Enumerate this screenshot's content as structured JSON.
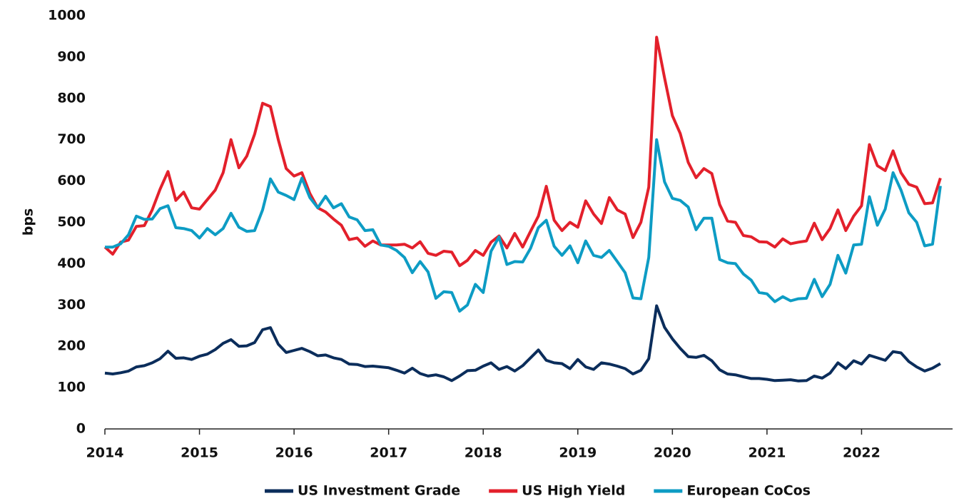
{
  "chart_data": {
    "type": "line",
    "y_label": "bps",
    "x": [
      2014,
      2014.083,
      2014.167,
      2014.25,
      2014.333,
      2014.417,
      2014.5,
      2014.583,
      2014.667,
      2014.75,
      2014.833,
      2014.917,
      2015,
      2015.083,
      2015.167,
      2015.25,
      2015.333,
      2015.417,
      2015.5,
      2015.583,
      2015.667,
      2015.75,
      2015.833,
      2015.917,
      2016,
      2016.083,
      2016.167,
      2016.25,
      2016.333,
      2016.417,
      2016.5,
      2016.583,
      2016.667,
      2016.75,
      2016.833,
      2016.917,
      2017,
      2017.083,
      2017.167,
      2017.25,
      2017.333,
      2017.417,
      2017.5,
      2017.583,
      2017.667,
      2017.75,
      2017.833,
      2017.917,
      2018,
      2018.083,
      2018.167,
      2018.25,
      2018.333,
      2018.417,
      2018.5,
      2018.583,
      2018.667,
      2018.75,
      2018.833,
      2018.917,
      2019,
      2019.083,
      2019.167,
      2019.25,
      2019.333,
      2019.417,
      2019.5,
      2019.583,
      2019.667,
      2019.75,
      2019.833,
      2019.917,
      2020,
      2020.083,
      2020.167,
      2020.25,
      2020.333,
      2020.417,
      2020.5,
      2020.583,
      2020.667,
      2020.75,
      2020.833,
      2020.917,
      2021,
      2021.083,
      2021.167,
      2021.25,
      2021.333,
      2021.417,
      2021.5,
      2021.583,
      2021.667,
      2021.75,
      2021.833,
      2021.917,
      2022,
      2022.083,
      2022.167,
      2022.25,
      2022.333,
      2022.417,
      2022.5,
      2022.583,
      2022.667,
      2022.75,
      2022.833
    ],
    "series": [
      {
        "name": "US Investment Grade",
        "color": "#0b2d5b",
        "values": [
          135,
          133,
          136,
          140,
          150,
          153,
          160,
          170,
          188,
          171,
          172,
          168,
          176,
          181,
          192,
          207,
          216,
          200,
          201,
          209,
          240,
          245,
          205,
          185,
          190,
          195,
          187,
          177,
          179,
          172,
          168,
          157,
          156,
          151,
          152,
          150,
          148,
          142,
          135,
          147,
          134,
          128,
          131,
          126,
          117,
          128,
          141,
          142,
          152,
          160,
          144,
          151,
          140,
          153,
          172,
          191,
          166,
          160,
          158,
          146,
          168,
          150,
          144,
          160,
          157,
          152,
          146,
          133,
          142,
          170,
          298,
          246,
          218,
          195,
          175,
          173,
          178,
          165,
          143,
          133,
          131,
          126,
          122,
          122,
          120,
          117,
          118,
          119,
          116,
          117,
          128,
          123,
          135,
          160,
          146,
          165,
          157,
          178,
          172,
          166,
          187,
          184,
          163,
          150,
          140,
          147,
          158
        ]
      },
      {
        "name": "US High Yield",
        "color": "#e3202b",
        "values": [
          440,
          423,
          452,
          457,
          490,
          492,
          530,
          580,
          623,
          553,
          573,
          535,
          532,
          555,
          578,
          620,
          700,
          632,
          660,
          713,
          788,
          780,
          700,
          630,
          612,
          620,
          570,
          535,
          525,
          508,
          493,
          458,
          462,
          442,
          455,
          445,
          445,
          445,
          447,
          438,
          453,
          425,
          420,
          430,
          428,
          395,
          408,
          432,
          420,
          452,
          467,
          438,
          473,
          440,
          478,
          515,
          587,
          505,
          480,
          500,
          488,
          552,
          520,
          497,
          560,
          530,
          520,
          463,
          500,
          585,
          948,
          850,
          758,
          715,
          645,
          608,
          630,
          618,
          543,
          503,
          500,
          468,
          465,
          453,
          452,
          440,
          460,
          448,
          452,
          455,
          498,
          458,
          485,
          530,
          480,
          515,
          540,
          688,
          637,
          625,
          673,
          620,
          592,
          585,
          545,
          547,
          607
        ]
      },
      {
        "name": "European CoCos",
        "color": "#0d9cc4",
        "values": [
          440,
          440,
          448,
          470,
          515,
          507,
          508,
          533,
          540,
          487,
          485,
          480,
          462,
          485,
          470,
          485,
          522,
          488,
          478,
          480,
          530,
          605,
          573,
          565,
          555,
          607,
          560,
          535,
          563,
          535,
          545,
          513,
          506,
          480,
          482,
          445,
          442,
          432,
          415,
          378,
          405,
          380,
          316,
          332,
          330,
          285,
          300,
          350,
          330,
          430,
          465,
          398,
          405,
          404,
          437,
          487,
          505,
          442,
          420,
          443,
          402,
          455,
          420,
          415,
          432,
          405,
          378,
          317,
          315,
          415,
          700,
          598,
          558,
          553,
          537,
          482,
          510,
          510,
          410,
          402,
          400,
          375,
          360,
          330,
          327,
          308,
          320,
          310,
          315,
          316,
          362,
          320,
          350,
          420,
          377,
          445,
          447,
          562,
          493,
          532,
          620,
          578,
          523,
          500,
          443,
          447,
          588
        ]
      }
    ],
    "xlim": [
      2014,
      2023
    ],
    "xticks": [
      2014,
      2015,
      2016,
      2017,
      2018,
      2019,
      2020,
      2021,
      2022
    ],
    "ylim": [
      0,
      1000
    ],
    "yticks": [
      0,
      100,
      200,
      300,
      400,
      500,
      600,
      700,
      800,
      900,
      1000
    ],
    "grid": false,
    "legend": "bottom"
  }
}
